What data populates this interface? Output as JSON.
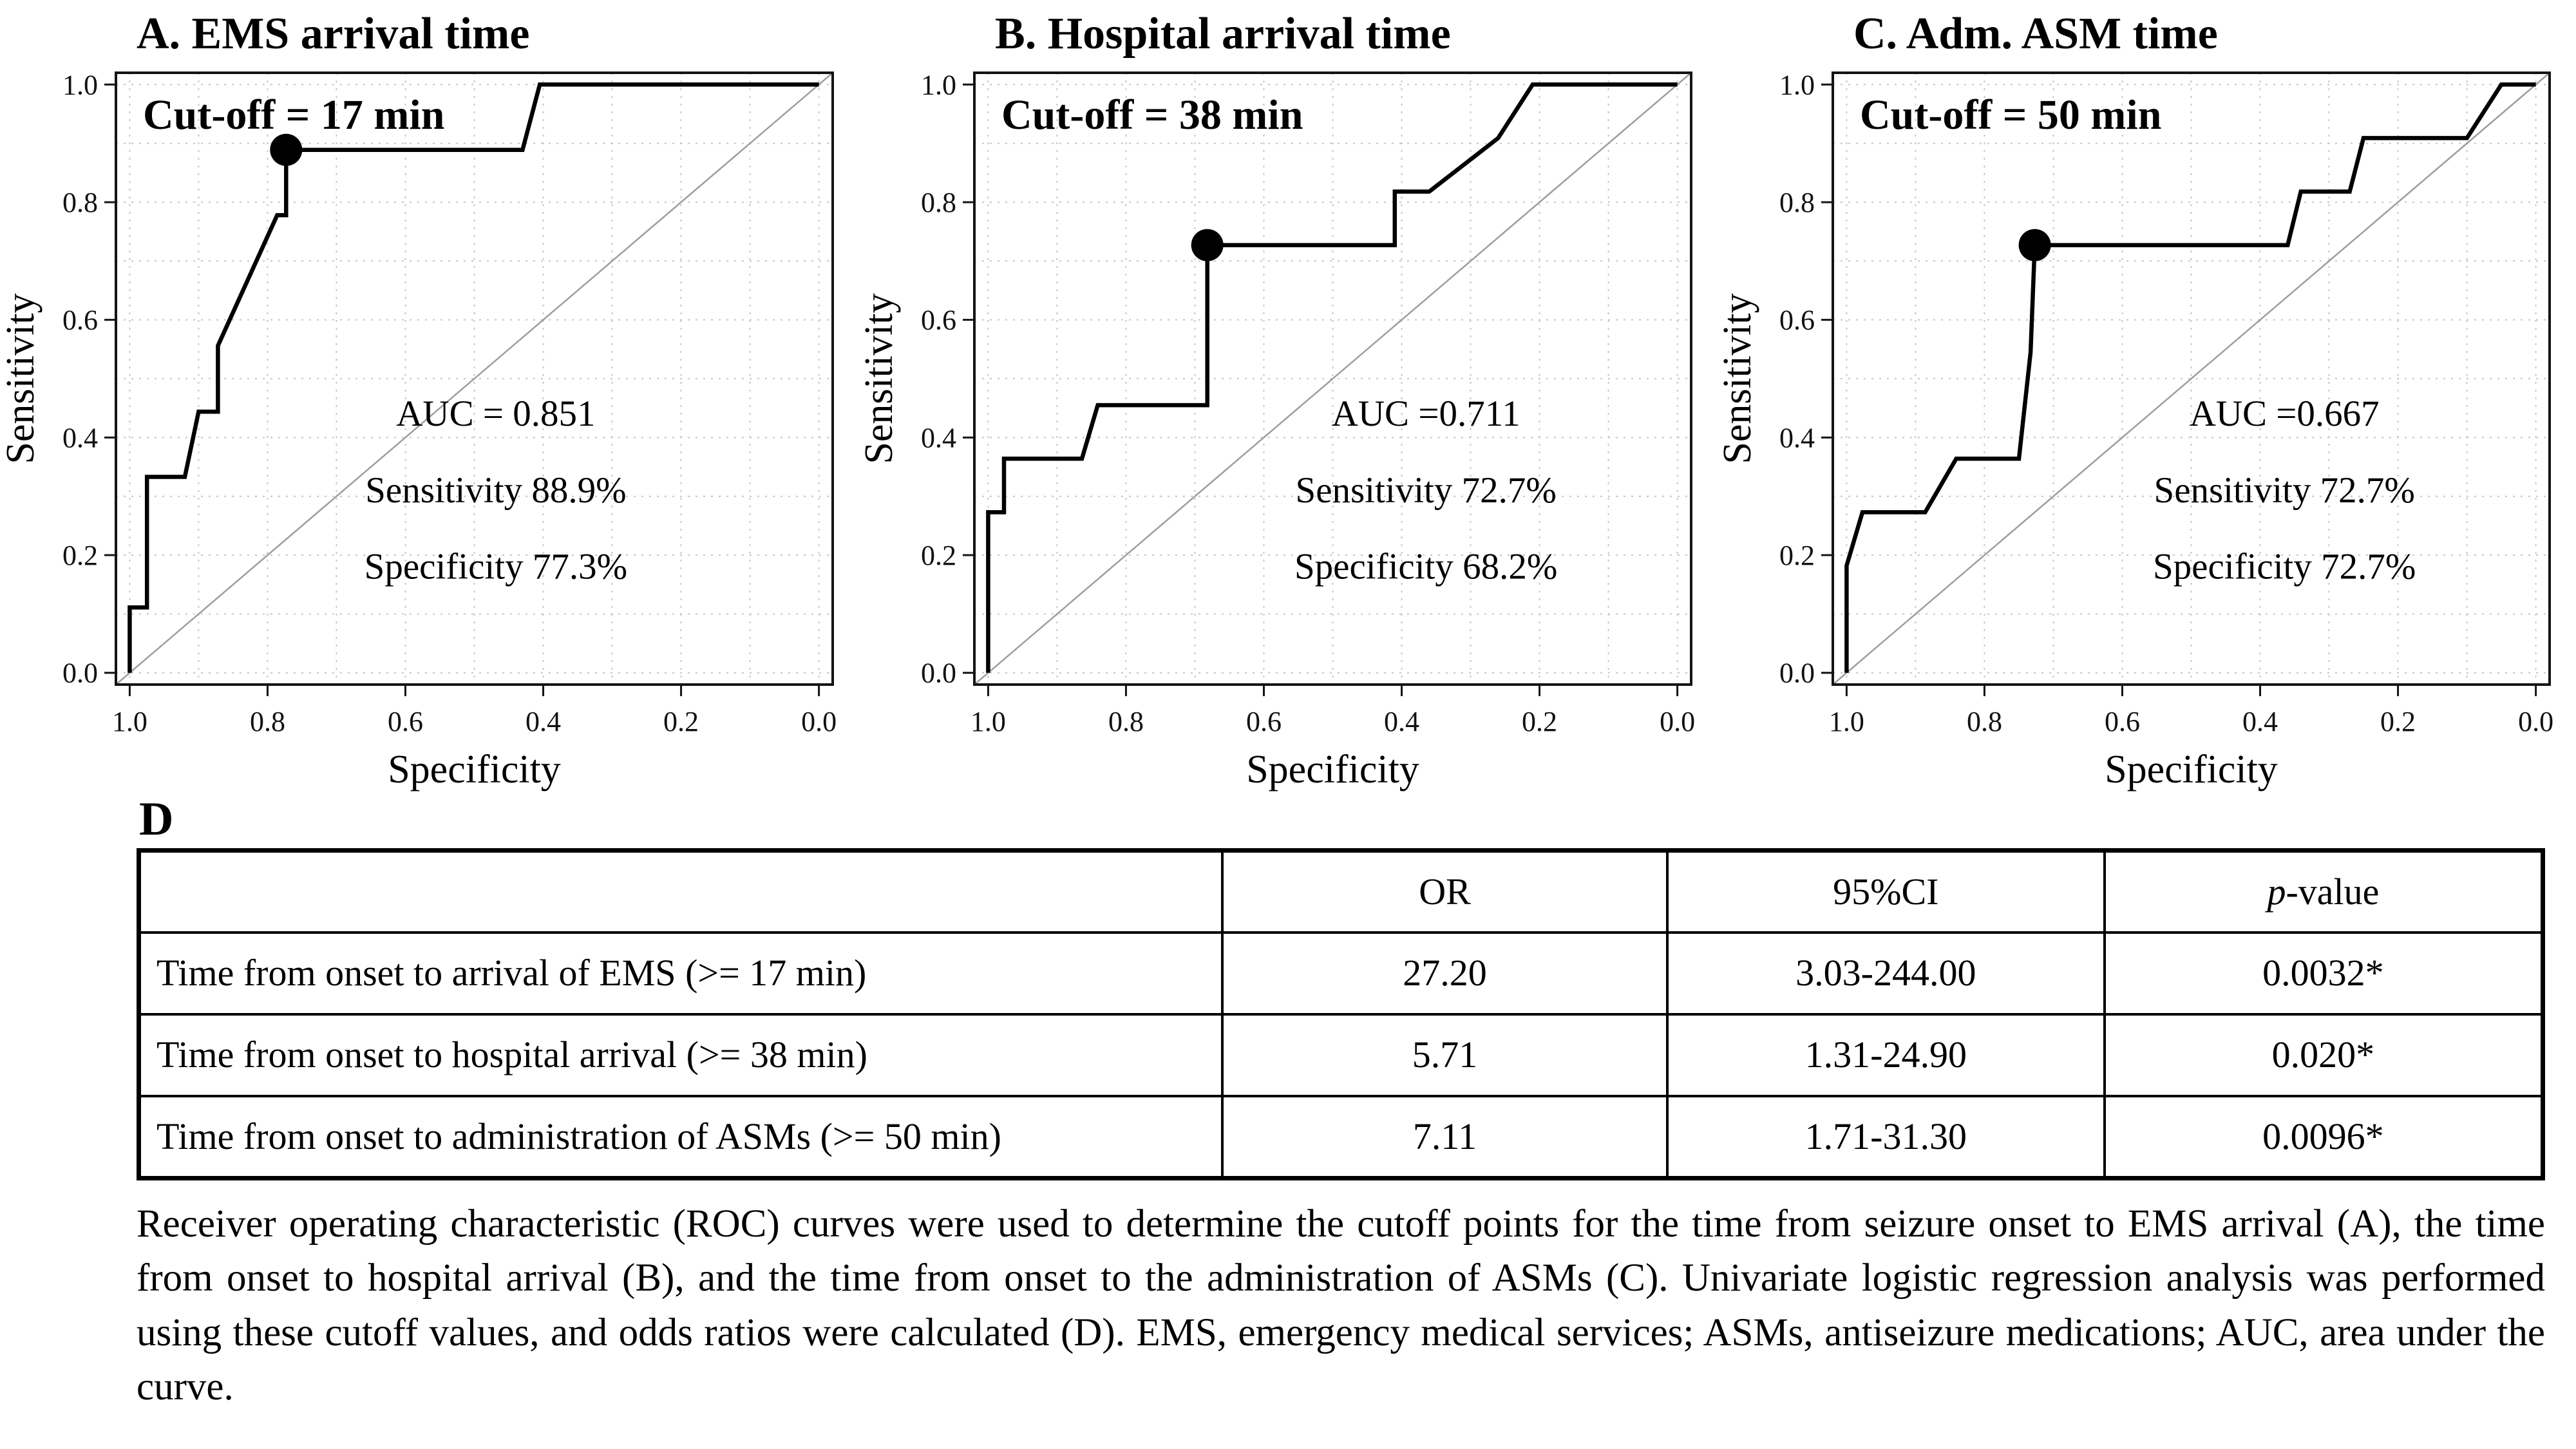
{
  "section_d_label": "D",
  "chart_data": [
    {
      "type": "line",
      "panel": "A",
      "title": "A. EMS arrival time",
      "cutoff_label": "Cut-off = 17 min",
      "auc_label": "AUC = 0.851",
      "sensitivity_label": "Sensitivity 88.9%",
      "specificity_label": "Specificity 77.3%",
      "xlabel": "Specificity",
      "ylabel": "Sensitivity",
      "xticks": [
        "1.0",
        "0.8",
        "0.6",
        "0.4",
        "0.2",
        "0.0"
      ],
      "yticks": [
        "0.0",
        "0.2",
        "0.4",
        "0.6",
        "0.8",
        "1.0"
      ],
      "xlim": [
        1.0,
        0.0
      ],
      "ylim": [
        0.0,
        1.0
      ],
      "grid": true,
      "diagonal": true,
      "cutoff_point": {
        "specificity": 0.773,
        "sensitivity": 0.889
      },
      "roc_points": [
        [
          1.0,
          0.0
        ],
        [
          1.0,
          0.111
        ],
        [
          0.975,
          0.111
        ],
        [
          0.975,
          0.333
        ],
        [
          0.92,
          0.333
        ],
        [
          0.9,
          0.444
        ],
        [
          0.872,
          0.444
        ],
        [
          0.872,
          0.556
        ],
        [
          0.786,
          0.778
        ],
        [
          0.773,
          0.778
        ],
        [
          0.773,
          0.889
        ],
        [
          0.43,
          0.889
        ],
        [
          0.405,
          1.0
        ],
        [
          0.0,
          1.0
        ]
      ]
    },
    {
      "type": "line",
      "panel": "B",
      "title": "B. Hospital arrival time",
      "cutoff_label": "Cut-off = 38 min",
      "auc_label": "AUC =0.711",
      "sensitivity_label": "Sensitivity 72.7%",
      "specificity_label": "Specificity 68.2%",
      "xlabel": "Specificity",
      "ylabel": "Sensitivity",
      "xticks": [
        "1.0",
        "0.8",
        "0.6",
        "0.4",
        "0.2",
        "0.0"
      ],
      "yticks": [
        "0.0",
        "0.2",
        "0.4",
        "0.6",
        "0.8",
        "1.0"
      ],
      "xlim": [
        1.0,
        0.0
      ],
      "ylim": [
        0.0,
        1.0
      ],
      "grid": true,
      "diagonal": true,
      "cutoff_point": {
        "specificity": 0.682,
        "sensitivity": 0.727
      },
      "roc_points": [
        [
          1.0,
          0.0
        ],
        [
          1.0,
          0.273
        ],
        [
          0.977,
          0.273
        ],
        [
          0.977,
          0.364
        ],
        [
          0.864,
          0.364
        ],
        [
          0.841,
          0.455
        ],
        [
          0.682,
          0.455
        ],
        [
          0.682,
          0.727
        ],
        [
          0.41,
          0.727
        ],
        [
          0.41,
          0.818
        ],
        [
          0.36,
          0.818
        ],
        [
          0.26,
          0.909
        ],
        [
          0.21,
          1.0
        ],
        [
          0.0,
          1.0
        ]
      ]
    },
    {
      "type": "line",
      "panel": "C",
      "title": "C. Adm. ASM time",
      "cutoff_label": "Cut-off = 50 min",
      "auc_label": "AUC =0.667",
      "sensitivity_label": "Sensitivity 72.7%",
      "specificity_label": "Specificity 72.7%",
      "xlabel": "Specificity",
      "ylabel": "Sensitivity",
      "xticks": [
        "1.0",
        "0.8",
        "0.6",
        "0.4",
        "0.2",
        "0.0"
      ],
      "yticks": [
        "0.0",
        "0.2",
        "0.4",
        "0.6",
        "0.8",
        "1.0"
      ],
      "xlim": [
        1.0,
        0.0
      ],
      "ylim": [
        0.0,
        1.0
      ],
      "grid": true,
      "diagonal": true,
      "cutoff_point": {
        "specificity": 0.727,
        "sensitivity": 0.727
      },
      "roc_points": [
        [
          1.0,
          0.0
        ],
        [
          1.0,
          0.182
        ],
        [
          0.977,
          0.273
        ],
        [
          0.886,
          0.273
        ],
        [
          0.841,
          0.364
        ],
        [
          0.75,
          0.364
        ],
        [
          0.733,
          0.545
        ],
        [
          0.727,
          0.727
        ],
        [
          0.36,
          0.727
        ],
        [
          0.341,
          0.818
        ],
        [
          0.27,
          0.818
        ],
        [
          0.25,
          0.909
        ],
        [
          0.1,
          0.909
        ],
        [
          0.05,
          1.0
        ],
        [
          0.0,
          1.0
        ]
      ]
    }
  ],
  "table": {
    "headers": [
      "",
      "OR",
      "95%CI",
      {
        "italic": "p",
        "rest": "-value"
      }
    ],
    "rows": [
      {
        "label": "Time from onset to arrival of EMS (>= 17 min)",
        "or": "27.20",
        "ci": "3.03-244.00",
        "p": "0.0032*"
      },
      {
        "label": "Time from onset to hospital arrival (>= 38 min)",
        "or": "5.71",
        "ci": "1.31-24.90",
        "p": "0.020*"
      },
      {
        "label": "Time from onset to administration of ASMs (>= 50 min)",
        "or": "7.11",
        "ci": "1.71-31.30",
        "p": "0.0096*"
      }
    ]
  },
  "caption": "Receiver operating characteristic (ROC) curves were used to determine the cutoff points for the time from seizure onset to EMS arrival (A), the time from onset to hospital arrival (B), and the time from onset to the administration of ASMs (C). Univariate logistic regression analysis was performed using these cutoff values, and odds ratios were calculated (D). EMS, emergency medical services; ASMs, antiseizure medications; AUC, area under the curve."
}
